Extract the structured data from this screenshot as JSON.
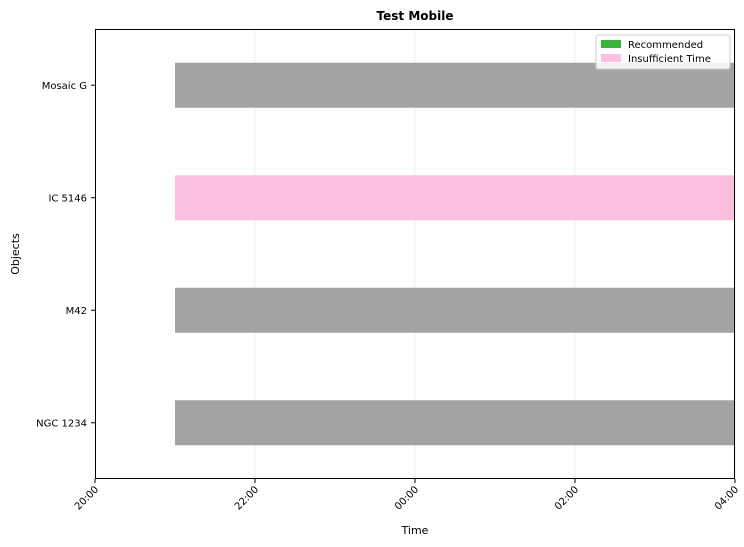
{
  "chart_data": {
    "type": "bar",
    "orientation": "horizontal-timeline",
    "title": "Test Mobile",
    "xlabel": "Time",
    "ylabel": "Objects",
    "x_ticks": [
      "20:00",
      "22:00",
      "00:00",
      "02:00",
      "04:00"
    ],
    "xlim": [
      "20:00",
      "04:00"
    ],
    "categories": [
      "NGC 1234",
      "M42",
      "IC 5146",
      "Mosaic G"
    ],
    "bars": [
      {
        "object": "NGC 1234",
        "start": "21:00",
        "end": "04:00",
        "status": "Other"
      },
      {
        "object": "M42",
        "start": "21:00",
        "end": "04:00",
        "status": "Other"
      },
      {
        "object": "IC 5146",
        "start": "21:00",
        "end": "04:00",
        "status": "Insufficient Time"
      },
      {
        "object": "Mosaic G",
        "start": "21:00",
        "end": "04:00",
        "status": "Other"
      }
    ],
    "status_colors": {
      "Recommended": "#3cb43c",
      "Insufficient Time": "#fdbfdf",
      "Other": "#a3a3a3"
    },
    "legend": {
      "placement": "top-right",
      "entries": [
        "Recommended",
        "Insufficient Time"
      ]
    },
    "grid": "vertical-only"
  }
}
